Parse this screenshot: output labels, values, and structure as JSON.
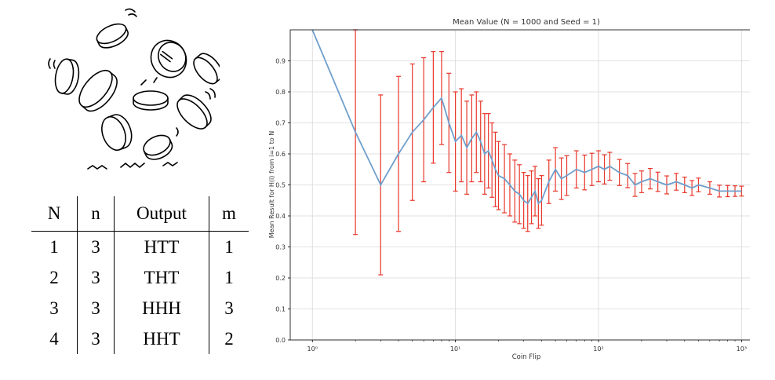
{
  "table": {
    "headers": [
      "N",
      "n",
      "Output",
      "m"
    ],
    "rows": [
      [
        "1",
        "3",
        "HTT",
        "1"
      ],
      [
        "2",
        "3",
        "THT",
        "1"
      ],
      [
        "3",
        "3",
        "HHH",
        "3"
      ],
      [
        "4",
        "3",
        "HHT",
        "2"
      ]
    ]
  },
  "chart_data": {
    "type": "line",
    "title": "Mean Value (N = 1000 and Seed = 1)",
    "xlabel": "Coin Flip",
    "ylabel": "Mean Result for H(i) from i=1 to N",
    "xscale": "log",
    "xlim": [
      0.7,
      1400
    ],
    "ylim": [
      0,
      1.0
    ],
    "xticks": [
      1,
      10,
      100,
      1000
    ],
    "xtick_labels": [
      "10⁰",
      "10¹",
      "10²",
      "10³"
    ],
    "yticks": [
      0,
      0.1,
      0.2,
      0.3,
      0.4,
      0.5,
      0.6,
      0.7,
      0.8,
      0.9
    ],
    "ytick_labels": [
      "0.0",
      "0.1",
      "0.2",
      "0.3",
      "0.4",
      "0.5",
      "0.6",
      "0.7",
      "0.8",
      "0.9"
    ],
    "grid": true,
    "line_color": "#6f9fcc",
    "error_color": "#e8372b",
    "series": [
      {
        "x": [
          1,
          2,
          3,
          4,
          5,
          6,
          7,
          8,
          9,
          10,
          11,
          12,
          13,
          14,
          15,
          16,
          17,
          18,
          19,
          20,
          22,
          24,
          26,
          28,
          30,
          32,
          34,
          36,
          38,
          40,
          45,
          50,
          55,
          60,
          70,
          80,
          90,
          100,
          110,
          120,
          140,
          160,
          180,
          200,
          230,
          260,
          300,
          350,
          400,
          450,
          500,
          600,
          700,
          800,
          900,
          1000
        ],
        "y": [
          1.0,
          0.67,
          0.5,
          0.6,
          0.67,
          0.71,
          0.75,
          0.78,
          0.7,
          0.64,
          0.66,
          0.62,
          0.65,
          0.67,
          0.64,
          0.6,
          0.61,
          0.58,
          0.55,
          0.53,
          0.52,
          0.5,
          0.48,
          0.47,
          0.45,
          0.44,
          0.46,
          0.48,
          0.44,
          0.45,
          0.51,
          0.55,
          0.52,
          0.53,
          0.55,
          0.54,
          0.55,
          0.56,
          0.55,
          0.56,
          0.54,
          0.53,
          0.5,
          0.51,
          0.52,
          0.51,
          0.5,
          0.51,
          0.5,
          0.49,
          0.5,
          0.49,
          0.48,
          0.48,
          0.48,
          0.48
        ],
        "err": [
          0,
          0.33,
          0.29,
          0.25,
          0.22,
          0.2,
          0.18,
          0.15,
          0.16,
          0.16,
          0.15,
          0.15,
          0.14,
          0.13,
          0.13,
          0.13,
          0.12,
          0.12,
          0.12,
          0.11,
          0.11,
          0.1,
          0.1,
          0.095,
          0.09,
          0.09,
          0.085,
          0.08,
          0.08,
          0.08,
          0.07,
          0.07,
          0.067,
          0.064,
          0.06,
          0.056,
          0.052,
          0.05,
          0.047,
          0.045,
          0.042,
          0.039,
          0.037,
          0.035,
          0.033,
          0.031,
          0.029,
          0.027,
          0.025,
          0.024,
          0.022,
          0.02,
          0.019,
          0.018,
          0.017,
          0.016
        ]
      }
    ]
  }
}
